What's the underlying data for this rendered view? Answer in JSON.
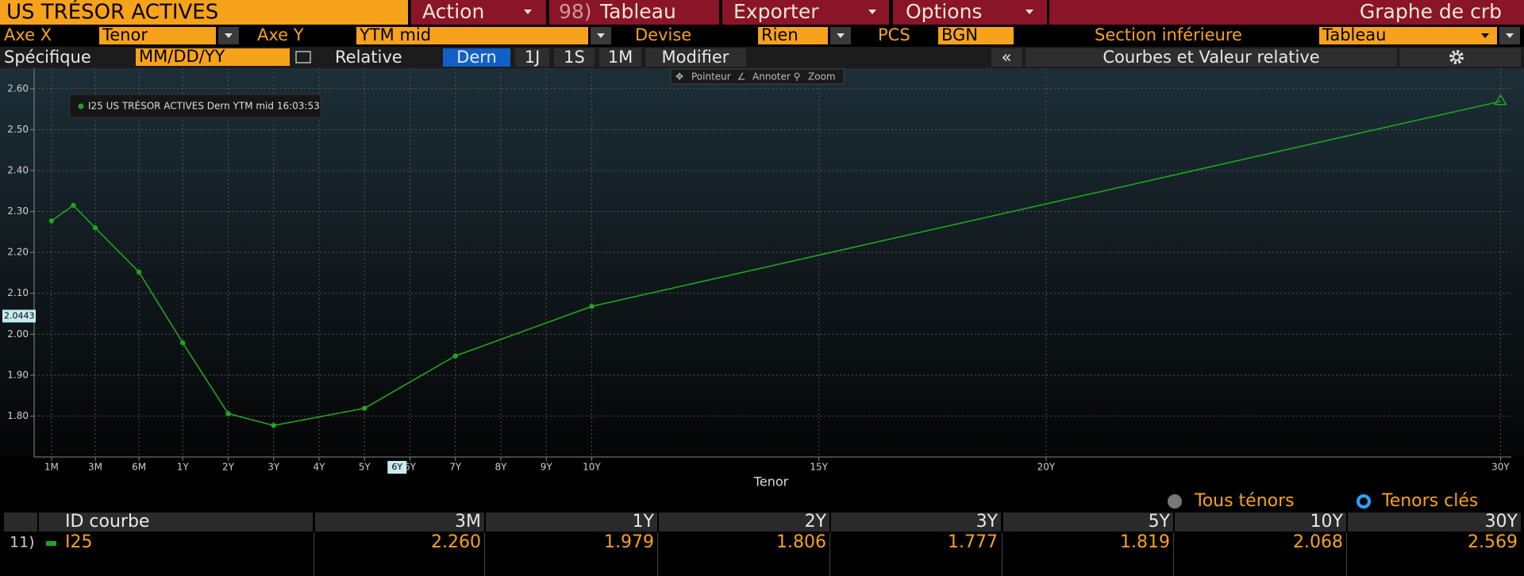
{
  "toolbar": {
    "title": "US TRÉSOR ACTIVES",
    "action": "Action",
    "shortcut": "98)",
    "table": "Tableau",
    "export": "Exporter",
    "options": "Options",
    "function": "Graphe de crb"
  },
  "settings": [
    {
      "label": "Axe X",
      "value": "Tenor"
    },
    {
      "label": "Axe Y",
      "value": "YTM mid"
    },
    {
      "label": "Devise",
      "value": "Rien"
    },
    {
      "label": "PCS",
      "value": "BGN"
    },
    {
      "label": "Section inférieure",
      "value": "Tableau"
    }
  ],
  "controls": {
    "specific": "Spécifique",
    "date": "MM/DD/YY",
    "relative": "Relative",
    "periods": [
      "Dern",
      "1J",
      "1S",
      "1M"
    ],
    "modify": "Modifier",
    "collapse": "«",
    "panel": "Courbes et Valeur relative"
  },
  "chart_tools": [
    "Pointeur",
    "Annoter",
    "Zoom"
  ],
  "chart_data": {
    "type": "line",
    "x_label": "Tenor",
    "grid": true,
    "x": [
      0.0833,
      0.1667,
      0.25,
      0.5,
      1,
      2,
      3,
      5,
      7,
      10,
      30
    ],
    "series": [
      {
        "name": "I25 US TRÉSOR ACTIVES Dern YTM mid 16:03:53",
        "color": "#1fa51f",
        "values": [
          2.277,
          2.315,
          2.26,
          2.152,
          1.979,
          1.806,
          1.777,
          1.819,
          1.947,
          2.068,
          2.569
        ]
      }
    ],
    "xlim": [
      0.0833,
      30
    ],
    "xticks": [
      {
        "value": 0.0833,
        "label": "1M"
      },
      {
        "value": 0.25,
        "label": "3M"
      },
      {
        "value": 0.5,
        "label": "6M"
      },
      {
        "value": 1,
        "label": "1Y"
      },
      {
        "value": 2,
        "label": "2Y"
      },
      {
        "value": 3,
        "label": "3Y"
      },
      {
        "value": 4,
        "label": "4Y"
      },
      {
        "value": 5,
        "label": "5Y"
      },
      {
        "value": 6,
        "label": "6Y"
      },
      {
        "value": 7,
        "label": "7Y"
      },
      {
        "value": 8,
        "label": "8Y"
      },
      {
        "value": 9,
        "label": "9Y"
      },
      {
        "value": 10,
        "label": "10Y"
      },
      {
        "value": 15,
        "label": "15Y"
      },
      {
        "value": 20,
        "label": "20Y"
      },
      {
        "value": 30,
        "label": "30Y"
      }
    ],
    "ylim": [
      1.7,
      2.65
    ],
    "yticks": [
      {
        "value": 1.8,
        "label": "1.80"
      },
      {
        "value": 1.9,
        "label": "1.90"
      },
      {
        "value": 2.0,
        "label": "2.00"
      },
      {
        "value": 2.1,
        "label": "2.10"
      },
      {
        "value": 2.2,
        "label": "2.20"
      },
      {
        "value": 2.3,
        "label": "2.30"
      },
      {
        "value": 2.4,
        "label": "2.40"
      },
      {
        "value": 2.5,
        "label": "2.50"
      },
      {
        "value": 2.6,
        "label": "2.60"
      }
    ],
    "cursor": {
      "x": {
        "value": 5.7,
        "label": "6Y"
      },
      "y": 2.0443
    }
  },
  "tenor_filters": [
    "Tous ténors",
    "Tenors clés"
  ],
  "table": {
    "header": [
      "ID courbe",
      "3M",
      "1Y",
      "2Y",
      "3Y",
      "5Y",
      "10Y",
      "30Y"
    ],
    "rows": [
      {
        "number": "11)",
        "cells": [
          "I25",
          "2.260",
          "1.979",
          "1.806",
          "1.777",
          "1.819",
          "2.068",
          "2.569"
        ]
      }
    ]
  }
}
